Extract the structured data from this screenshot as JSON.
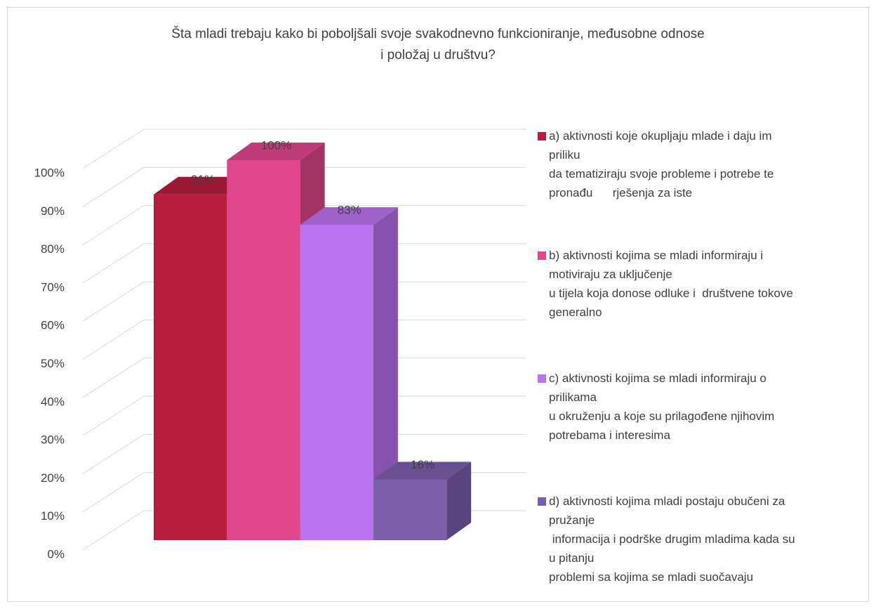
{
  "chart_data": {
    "type": "bar3d",
    "title": "Šta mladi trebaju kako bi poboljšali svoje svakodnevno funkcioniranje, međusobne odnose\ni položaj u društvu?",
    "series": [
      {
        "name": "a) aktivnosti koje okupljaju mlade i daju im\npriliku\nda tematiziraju svoje probleme i potrebe te\npronađu      rješenja za iste",
        "color": "#b81d3e",
        "values": [
          91
        ],
        "value_labels": [
          "91%"
        ]
      },
      {
        "name": "b) aktivnosti kojima se mladi informiraju i\nmotiviraju za uključenje\nu tijela koja donose odluke i  društvene tokove\ngeneralno",
        "color": "#e0478c",
        "values": [
          100
        ],
        "value_labels": [
          "100%"
        ]
      },
      {
        "name": "c) aktivnosti kojima se mladi informiraju o\nprilikama\nu okruženju a koje su prilagođene njihovim\npotrebama i interesima",
        "color": "#bb72ee",
        "values": [
          83
        ],
        "value_labels": [
          "83%"
        ]
      },
      {
        "name": "d) aktivnosti kojima mladi postaju obučeni za\npružanje\n informacija i podrške drugim mladima kada su\nu pitanju\nproblemi sa kojima se mladi suočavaju",
        "color": "#7b5fab",
        "values": [
          16
        ],
        "value_labels": [
          "16%"
        ]
      }
    ],
    "ylim": [
      0,
      100
    ],
    "yticks": [
      {
        "value": 0,
        "label": "0%"
      },
      {
        "value": 10,
        "label": "10%"
      },
      {
        "value": 20,
        "label": "20%"
      },
      {
        "value": 30,
        "label": "30%"
      },
      {
        "value": 40,
        "label": "40%"
      },
      {
        "value": 50,
        "label": "50%"
      },
      {
        "value": 60,
        "label": "60%"
      },
      {
        "value": 70,
        "label": "70%"
      },
      {
        "value": 80,
        "label": "80%"
      },
      {
        "value": 90,
        "label": "90%"
      },
      {
        "value": 100,
        "label": "100%"
      }
    ],
    "grid": true,
    "legend": "right"
  }
}
